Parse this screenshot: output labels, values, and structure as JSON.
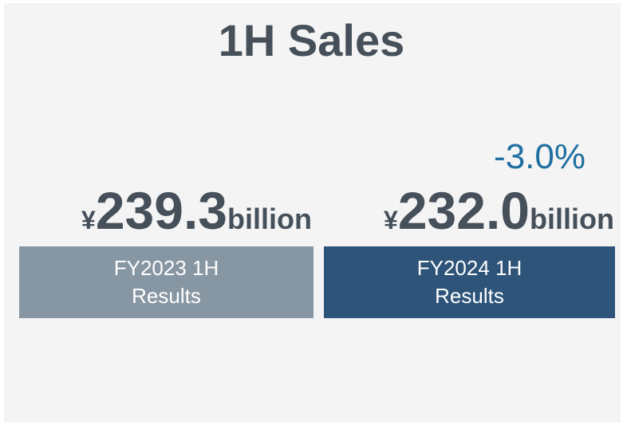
{
  "title": "1H Sales",
  "change": "-3.0%",
  "items": [
    {
      "currency": "¥",
      "amount": "239.3",
      "unit": "billion",
      "label": [
        "FY2023 1H",
        "Results"
      ]
    },
    {
      "currency": "¥",
      "amount": "232.0",
      "unit": "billion",
      "label": [
        "FY2024 1H",
        "Results"
      ]
    }
  ]
}
